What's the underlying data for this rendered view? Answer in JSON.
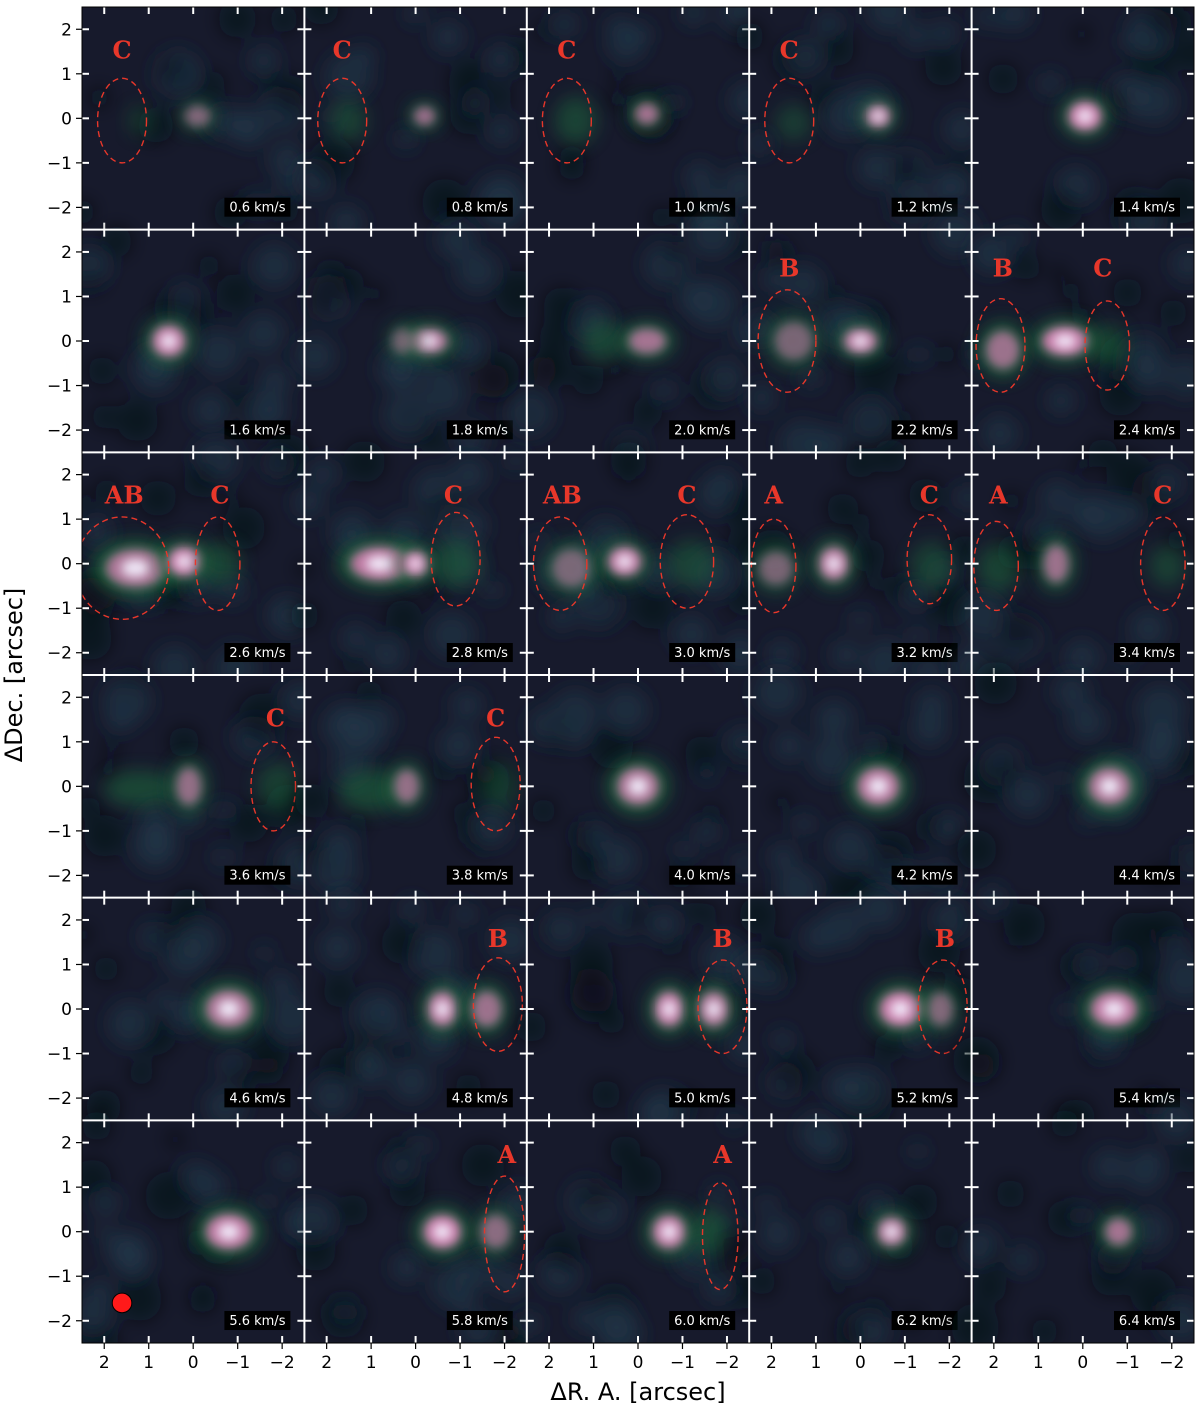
{
  "figure": {
    "xlabel": "ΔR. A. [arcsec]",
    "ylabel": "ΔDec. [arcsec]",
    "x_ticks": [
      "2",
      "1",
      "0",
      "−1",
      "−2"
    ],
    "y_ticks": [
      "2",
      "1",
      "0",
      "−1",
      "−2"
    ],
    "colors": {
      "background": "#171a2c",
      "emission_low": "#1f6a3c",
      "emission_mid": "#c77aa8",
      "emission_peak": "#f4f1ff",
      "ellipse": "#e8372a",
      "label": "#e8372a",
      "beam": "#ff1a1a",
      "velocity_box": "#000000",
      "velocity_text": "#ffffff"
    }
  },
  "chart_data": {
    "type": "heatmap",
    "description_units": "arcsec offsets; velocity channels in km/s",
    "xlabel": "ΔR. A. [arcsec]",
    "ylabel": "ΔDec. [arcsec]",
    "xlim": [
      2.5,
      -2.5
    ],
    "ylim": [
      -2.5,
      2.5
    ],
    "x_ticks": [
      2,
      1,
      0,
      -1,
      -2
    ],
    "y_ticks": [
      2,
      1,
      0,
      -1,
      -2
    ],
    "beam": {
      "panel_velocity": "5.6 km/s",
      "x": 1.6,
      "y": -1.6,
      "radius_arcsec": 0.22
    },
    "panels": [
      {
        "velocity": "0.6 km/s",
        "blobs": [
          {
            "x": -0.1,
            "y": 0.05,
            "sx": 0.3,
            "sy": 0.25,
            "a": 0.6
          },
          {
            "x": 1.2,
            "y": -0.05,
            "sx": 0.2,
            "sy": 0.25,
            "a": 0.25
          }
        ],
        "ellipses": [
          {
            "label": "C",
            "x": 1.6,
            "y": -0.05,
            "rx": 0.55,
            "ry": 0.95,
            "lx": 1.6,
            "ly": 1.55
          }
        ]
      },
      {
        "velocity": "0.8 km/s",
        "blobs": [
          {
            "x": -0.2,
            "y": 0.05,
            "sx": 0.25,
            "sy": 0.22,
            "a": 0.75
          },
          {
            "x": 1.5,
            "y": -0.05,
            "sx": 0.3,
            "sy": 0.35,
            "a": 0.35
          }
        ],
        "ellipses": [
          {
            "label": "C",
            "x": 1.65,
            "y": -0.05,
            "rx": 0.55,
            "ry": 0.95,
            "lx": 1.65,
            "ly": 1.55
          }
        ]
      },
      {
        "velocity": "1.0 km/s",
        "blobs": [
          {
            "x": -0.2,
            "y": 0.1,
            "sx": 0.28,
            "sy": 0.25,
            "a": 0.8
          },
          {
            "x": 1.4,
            "y": -0.05,
            "sx": 0.35,
            "sy": 0.4,
            "a": 0.4
          }
        ],
        "ellipses": [
          {
            "label": "C",
            "x": 1.6,
            "y": -0.05,
            "rx": 0.55,
            "ry": 0.95,
            "lx": 1.6,
            "ly": 1.55
          }
        ]
      },
      {
        "velocity": "1.2 km/s",
        "blobs": [
          {
            "x": -0.4,
            "y": 0.05,
            "sx": 0.3,
            "sy": 0.28,
            "a": 0.85
          },
          {
            "x": 1.5,
            "y": -0.1,
            "sx": 0.3,
            "sy": 0.3,
            "a": 0.3
          }
        ],
        "ellipses": [
          {
            "label": "C",
            "x": 1.6,
            "y": -0.05,
            "rx": 0.55,
            "ry": 0.95,
            "lx": 1.6,
            "ly": 1.55
          }
        ]
      },
      {
        "velocity": "1.4 km/s",
        "blobs": [
          {
            "x": -0.05,
            "y": 0.05,
            "sx": 0.4,
            "sy": 0.35,
            "a": 1.0
          }
        ],
        "ellipses": []
      },
      {
        "velocity": "1.6 km/s",
        "blobs": [
          {
            "x": 0.55,
            "y": 0.0,
            "sx": 0.4,
            "sy": 0.38,
            "a": 0.95
          }
        ],
        "ellipses": []
      },
      {
        "velocity": "1.8 km/s",
        "blobs": [
          {
            "x": -0.3,
            "y": 0.0,
            "sx": 0.45,
            "sy": 0.3,
            "a": 0.85
          },
          {
            "x": 0.3,
            "y": 0.0,
            "sx": 0.25,
            "sy": 0.3,
            "a": 0.5
          }
        ],
        "ellipses": []
      },
      {
        "velocity": "2.0 km/s",
        "blobs": [
          {
            "x": -0.2,
            "y": 0.0,
            "sx": 0.45,
            "sy": 0.3,
            "a": 0.8
          },
          {
            "x": 0.8,
            "y": 0.0,
            "sx": 0.35,
            "sy": 0.35,
            "a": 0.4
          }
        ],
        "ellipses": []
      },
      {
        "velocity": "2.2 km/s",
        "blobs": [
          {
            "x": 0.0,
            "y": 0.0,
            "sx": 0.4,
            "sy": 0.3,
            "a": 0.9
          },
          {
            "x": 1.5,
            "y": 0.0,
            "sx": 0.45,
            "sy": 0.45,
            "a": 0.55
          }
        ],
        "ellipses": [
          {
            "label": "B",
            "x": 1.65,
            "y": 0.0,
            "rx": 0.65,
            "ry": 1.15,
            "lx": 1.6,
            "ly": 1.65
          }
        ]
      },
      {
        "velocity": "2.4 km/s",
        "blobs": [
          {
            "x": 0.4,
            "y": 0.0,
            "sx": 0.55,
            "sy": 0.35,
            "a": 1.0
          },
          {
            "x": 1.8,
            "y": -0.2,
            "sx": 0.4,
            "sy": 0.45,
            "a": 0.75
          },
          {
            "x": -0.6,
            "y": -0.1,
            "sx": 0.3,
            "sy": 0.35,
            "a": 0.4
          }
        ],
        "ellipses": [
          {
            "label": "B",
            "x": 1.85,
            "y": -0.1,
            "rx": 0.55,
            "ry": 1.05,
            "lx": 1.8,
            "ly": 1.65
          },
          {
            "label": "C",
            "x": -0.55,
            "y": -0.1,
            "rx": 0.5,
            "ry": 1.0,
            "lx": -0.45,
            "ly": 1.65
          }
        ]
      },
      {
        "velocity": "2.6 km/s",
        "blobs": [
          {
            "x": 1.3,
            "y": -0.1,
            "sx": 0.7,
            "sy": 0.45,
            "a": 0.85
          },
          {
            "x": 0.2,
            "y": 0.05,
            "sx": 0.4,
            "sy": 0.35,
            "a": 1.0
          },
          {
            "x": -0.6,
            "y": 0.0,
            "sx": 0.35,
            "sy": 0.35,
            "a": 0.4
          }
        ],
        "ellipses": [
          {
            "label": "AB",
            "x": 1.6,
            "y": -0.1,
            "rx": 1.05,
            "ry": 1.15,
            "lx": 1.55,
            "ly": 1.55
          },
          {
            "label": "C",
            "x": -0.55,
            "y": 0.0,
            "rx": 0.5,
            "ry": 1.05,
            "lx": -0.6,
            "ly": 1.55
          }
        ]
      },
      {
        "velocity": "2.8 km/s",
        "blobs": [
          {
            "x": 0.8,
            "y": 0.0,
            "sx": 0.7,
            "sy": 0.4,
            "a": 0.95
          },
          {
            "x": 0.0,
            "y": 0.0,
            "sx": 0.3,
            "sy": 0.3,
            "a": 1.0
          },
          {
            "x": -0.9,
            "y": 0.0,
            "sx": 0.4,
            "sy": 0.4,
            "a": 0.4
          }
        ],
        "ellipses": [
          {
            "label": "C",
            "x": -0.9,
            "y": 0.1,
            "rx": 0.55,
            "ry": 1.05,
            "lx": -0.85,
            "ly": 1.55
          }
        ]
      },
      {
        "velocity": "3.0 km/s",
        "blobs": [
          {
            "x": 1.5,
            "y": -0.1,
            "sx": 0.45,
            "sy": 0.45,
            "a": 0.55
          },
          {
            "x": 0.3,
            "y": 0.05,
            "sx": 0.4,
            "sy": 0.35,
            "a": 0.95
          },
          {
            "x": -1.2,
            "y": 0.0,
            "sx": 0.4,
            "sy": 0.4,
            "a": 0.35
          }
        ],
        "ellipses": [
          {
            "label": "AB",
            "x": 1.75,
            "y": 0.0,
            "rx": 0.6,
            "ry": 1.05,
            "lx": 1.7,
            "ly": 1.55
          },
          {
            "label": "C",
            "x": -1.1,
            "y": 0.05,
            "rx": 0.6,
            "ry": 1.05,
            "lx": -1.1,
            "ly": 1.55
          }
        ]
      },
      {
        "velocity": "3.2 km/s",
        "blobs": [
          {
            "x": 1.9,
            "y": -0.1,
            "sx": 0.4,
            "sy": 0.4,
            "a": 0.55
          },
          {
            "x": 0.6,
            "y": 0.0,
            "sx": 0.35,
            "sy": 0.4,
            "a": 0.9
          },
          {
            "x": -1.6,
            "y": -0.05,
            "sx": 0.35,
            "sy": 0.4,
            "a": 0.35
          }
        ],
        "ellipses": [
          {
            "label": "A",
            "x": 1.95,
            "y": -0.05,
            "rx": 0.5,
            "ry": 1.05,
            "lx": 1.95,
            "ly": 1.55
          },
          {
            "label": "C",
            "x": -1.55,
            "y": 0.1,
            "rx": 0.5,
            "ry": 1.0,
            "lx": -1.55,
            "ly": 1.55
          }
        ]
      },
      {
        "velocity": "3.4 km/s",
        "blobs": [
          {
            "x": 1.9,
            "y": -0.1,
            "sx": 0.35,
            "sy": 0.4,
            "a": 0.4
          },
          {
            "x": 0.6,
            "y": 0.0,
            "sx": 0.3,
            "sy": 0.45,
            "a": 0.75
          },
          {
            "x": -1.9,
            "y": -0.05,
            "sx": 0.3,
            "sy": 0.35,
            "a": 0.35
          }
        ],
        "ellipses": [
          {
            "label": "A",
            "x": 1.95,
            "y": -0.05,
            "rx": 0.5,
            "ry": 1.0,
            "lx": 1.9,
            "ly": 1.55
          },
          {
            "label": "C",
            "x": -1.8,
            "y": 0.0,
            "rx": 0.5,
            "ry": 1.05,
            "lx": -1.8,
            "ly": 1.55
          }
        ]
      },
      {
        "velocity": "3.6 km/s",
        "blobs": [
          {
            "x": 1.2,
            "y": -0.05,
            "sx": 0.6,
            "sy": 0.3,
            "a": 0.45
          },
          {
            "x": 0.1,
            "y": 0.0,
            "sx": 0.3,
            "sy": 0.45,
            "a": 0.7
          },
          {
            "x": -1.9,
            "y": 0.0,
            "sx": 0.35,
            "sy": 0.4,
            "a": 0.35
          }
        ],
        "ellipses": [
          {
            "label": "C",
            "x": -1.8,
            "y": 0.0,
            "rx": 0.5,
            "ry": 1.0,
            "lx": -1.85,
            "ly": 1.55
          }
        ]
      },
      {
        "velocity": "3.8 km/s",
        "blobs": [
          {
            "x": 1.0,
            "y": -0.1,
            "sx": 0.55,
            "sy": 0.35,
            "a": 0.45
          },
          {
            "x": 0.2,
            "y": 0.0,
            "sx": 0.3,
            "sy": 0.4,
            "a": 0.7
          },
          {
            "x": -1.9,
            "y": 0.0,
            "sx": 0.3,
            "sy": 0.4,
            "a": 0.25
          }
        ],
        "ellipses": [
          {
            "label": "C",
            "x": -1.8,
            "y": 0.05,
            "rx": 0.55,
            "ry": 1.05,
            "lx": -1.8,
            "ly": 1.55
          }
        ]
      },
      {
        "velocity": "4.0 km/s",
        "blobs": [
          {
            "x": 0.0,
            "y": 0.0,
            "sx": 0.5,
            "sy": 0.45,
            "a": 0.85
          }
        ],
        "ellipses": []
      },
      {
        "velocity": "4.2 km/s",
        "blobs": [
          {
            "x": -0.4,
            "y": 0.0,
            "sx": 0.5,
            "sy": 0.45,
            "a": 0.9
          }
        ],
        "ellipses": []
      },
      {
        "velocity": "4.4 km/s",
        "blobs": [
          {
            "x": -0.6,
            "y": 0.0,
            "sx": 0.5,
            "sy": 0.45,
            "a": 0.85
          }
        ],
        "ellipses": []
      },
      {
        "velocity": "4.6 km/s",
        "blobs": [
          {
            "x": -0.8,
            "y": 0.0,
            "sx": 0.55,
            "sy": 0.45,
            "a": 0.85
          }
        ],
        "ellipses": []
      },
      {
        "velocity": "4.8 km/s",
        "blobs": [
          {
            "x": -0.6,
            "y": 0.0,
            "sx": 0.35,
            "sy": 0.42,
            "a": 0.9
          },
          {
            "x": -1.6,
            "y": 0.0,
            "sx": 0.35,
            "sy": 0.42,
            "a": 0.75
          }
        ],
        "ellipses": [
          {
            "label": "B",
            "x": -1.85,
            "y": 0.1,
            "rx": 0.55,
            "ry": 1.05,
            "lx": -1.85,
            "ly": 1.6
          }
        ]
      },
      {
        "velocity": "5.0 km/s",
        "blobs": [
          {
            "x": -0.7,
            "y": 0.0,
            "sx": 0.35,
            "sy": 0.42,
            "a": 0.95
          },
          {
            "x": -1.7,
            "y": 0.0,
            "sx": 0.35,
            "sy": 0.42,
            "a": 0.85
          }
        ],
        "ellipses": [
          {
            "label": "B",
            "x": -1.9,
            "y": 0.05,
            "rx": 0.55,
            "ry": 1.05,
            "lx": -1.9,
            "ly": 1.6
          }
        ]
      },
      {
        "velocity": "5.2 km/s",
        "blobs": [
          {
            "x": -0.9,
            "y": 0.0,
            "sx": 0.5,
            "sy": 0.42,
            "a": 1.0
          },
          {
            "x": -1.8,
            "y": 0.0,
            "sx": 0.3,
            "sy": 0.4,
            "a": 0.6
          }
        ],
        "ellipses": [
          {
            "label": "B",
            "x": -1.85,
            "y": 0.05,
            "rx": 0.55,
            "ry": 1.05,
            "lx": -1.9,
            "ly": 1.6
          }
        ]
      },
      {
        "velocity": "5.4 km/s",
        "blobs": [
          {
            "x": -0.7,
            "y": 0.0,
            "sx": 0.55,
            "sy": 0.42,
            "a": 0.95
          }
        ],
        "ellipses": []
      },
      {
        "velocity": "5.6 km/s",
        "blobs": [
          {
            "x": -0.8,
            "y": 0.0,
            "sx": 0.55,
            "sy": 0.42,
            "a": 0.95
          }
        ],
        "ellipses": []
      },
      {
        "velocity": "5.8 km/s",
        "blobs": [
          {
            "x": -0.6,
            "y": 0.0,
            "sx": 0.45,
            "sy": 0.4,
            "a": 1.0
          },
          {
            "x": -1.8,
            "y": 0.0,
            "sx": 0.35,
            "sy": 0.4,
            "a": 0.65
          }
        ],
        "ellipses": [
          {
            "label": "A",
            "x": -2.0,
            "y": -0.05,
            "rx": 0.45,
            "ry": 1.3,
            "lx": -2.05,
            "ly": 1.75
          }
        ]
      },
      {
        "velocity": "6.0 km/s",
        "blobs": [
          {
            "x": -0.7,
            "y": 0.0,
            "sx": 0.4,
            "sy": 0.4,
            "a": 0.95
          },
          {
            "x": -1.6,
            "y": 0.0,
            "sx": 0.3,
            "sy": 0.4,
            "a": 0.45
          }
        ],
        "ellipses": [
          {
            "label": "A",
            "x": -1.85,
            "y": -0.1,
            "rx": 0.4,
            "ry": 1.2,
            "lx": -1.9,
            "ly": 1.75
          }
        ]
      },
      {
        "velocity": "6.2 km/s",
        "blobs": [
          {
            "x": -0.7,
            "y": 0.0,
            "sx": 0.35,
            "sy": 0.35,
            "a": 0.85
          }
        ],
        "ellipses": []
      },
      {
        "velocity": "6.4 km/s",
        "blobs": [
          {
            "x": -0.8,
            "y": 0.0,
            "sx": 0.32,
            "sy": 0.32,
            "a": 0.8
          }
        ],
        "ellipses": []
      }
    ]
  }
}
